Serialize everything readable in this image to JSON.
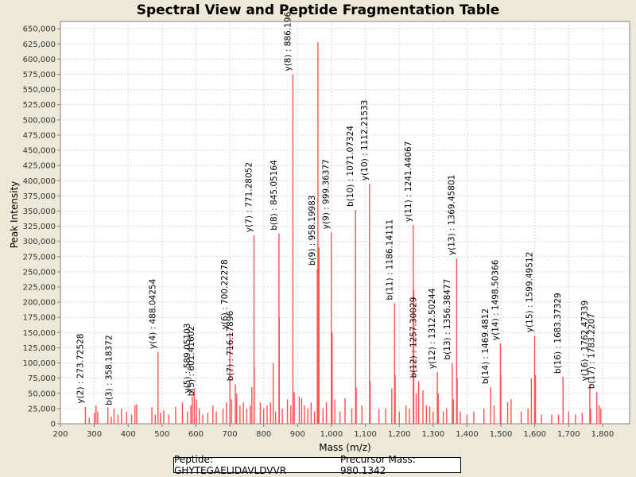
{
  "chart_data": {
    "type": "bar",
    "title": "Spectral View and Peptide Fragmentation Table",
    "xlabel": "Mass (m/z)",
    "ylabel": "Peak Intensity",
    "xlim": [
      200,
      1880
    ],
    "ylim": [
      0,
      662000
    ],
    "x_ticks": [
      "200",
      "300",
      "400",
      "500",
      "600",
      "700",
      "800",
      "900",
      "1,000",
      "1,100",
      "1,200",
      "1,300",
      "1,400",
      "1,500",
      "1,600",
      "1,700",
      "1,800"
    ],
    "y_ticks": [
      "0",
      "25,000",
      "50,000",
      "75,000",
      "100,000",
      "125,000",
      "150,000",
      "175,000",
      "200,000",
      "225,000",
      "250,000",
      "275,000",
      "300,000",
      "325,000",
      "350,000",
      "375,000",
      "400,000",
      "425,000",
      "450,000",
      "475,000",
      "500,000",
      "525,000",
      "550,000",
      "575,000",
      "600,000",
      "625,000",
      "650,000"
    ],
    "grid": true,
    "bar_color": "#FF5050",
    "annotated_peaks": [
      {
        "x": 273.7,
        "y": 28000,
        "label": "y(2) : 273.72528"
      },
      {
        "x": 358.2,
        "y": 25000,
        "label": "b(3) : 358.18372"
      },
      {
        "x": 488.0,
        "y": 118000,
        "label": "y(4) : 488.04254"
      },
      {
        "x": 589.1,
        "y": 45000,
        "label": "y(5) : 589.05103"
      },
      {
        "x": 601.4,
        "y": 40000,
        "label": "b(5) : 601.41602"
      },
      {
        "x": 700.2,
        "y": 150000,
        "label": "y(6) : 700.22278"
      },
      {
        "x": 716.2,
        "y": 65000,
        "label": "b(7) : 716.17896"
      },
      {
        "x": 771.3,
        "y": 310000,
        "label": "y(7) : 771.28052"
      },
      {
        "x": 845.1,
        "y": 313000,
        "label": "b(8) : 845.05164"
      },
      {
        "x": 886.2,
        "y": 575000,
        "label": "y(8) : 886.196"
      },
      {
        "x": 958.2,
        "y": 255000,
        "label": "b(9) : 958.19983"
      },
      {
        "x": 999.4,
        "y": 315000,
        "label": "y(9) : 999.36377"
      },
      {
        "x": 1071.1,
        "y": 352000,
        "label": "b(10) : 1071.07324"
      },
      {
        "x": 1112.2,
        "y": 395000,
        "label": "y(10) : 1112.21533"
      },
      {
        "x": 1186.1,
        "y": 198000,
        "label": "b(11) : 1186.14111"
      },
      {
        "x": 1241.4,
        "y": 327000,
        "label": "y(11) : 1241.44067"
      },
      {
        "x": 1257.3,
        "y": 70000,
        "label": "b(12) : 1257.30029"
      },
      {
        "x": 1312.5,
        "y": 85000,
        "label": "y(12) : 1312.50244"
      },
      {
        "x": 1356.4,
        "y": 100000,
        "label": "b(13) : 1356.38477"
      },
      {
        "x": 1369.5,
        "y": 272000,
        "label": "y(13) : 1369.45801"
      },
      {
        "x": 1469.5,
        "y": 60000,
        "label": "b(14) : 1469.4812"
      },
      {
        "x": 1498.5,
        "y": 132000,
        "label": "y(14) : 1498.50366"
      },
      {
        "x": 1599.5,
        "y": 145000,
        "label": "y(15) : 1599.49512"
      },
      {
        "x": 1683.4,
        "y": 77000,
        "label": "b(16) : 1683.37329"
      },
      {
        "x": 1762.5,
        "y": 65000,
        "label": "y(16) : 1762.47339"
      },
      {
        "x": 1783.2,
        "y": 52000,
        "label": "b(17) : 1783.2207"
      }
    ],
    "unlabeled_peaks": [
      {
        "x": 960,
        "y": 628000
      },
      {
        "x": 963,
        "y": 290000
      },
      {
        "x": 1002,
        "y": 150000
      },
      {
        "x": 846,
        "y": 175000
      },
      {
        "x": 772,
        "y": 95000
      },
      {
        "x": 828,
        "y": 100000
      },
      {
        "x": 890,
        "y": 52000
      },
      {
        "x": 1243,
        "y": 220000
      },
      {
        "x": 1188,
        "y": 80000
      },
      {
        "x": 1371,
        "y": 75000
      },
      {
        "x": 1114,
        "y": 70000
      },
      {
        "x": 1073,
        "y": 60000
      },
      {
        "x": 1500,
        "y": 80000
      },
      {
        "x": 1602,
        "y": 80000
      },
      {
        "x": 1250,
        "y": 50000
      },
      {
        "x": 1315,
        "y": 50000
      },
      {
        "x": 1178,
        "y": 58000
      },
      {
        "x": 1590,
        "y": 75000
      },
      {
        "x": 1040,
        "y": 42000
      },
      {
        "x": 1010,
        "y": 40000
      },
      {
        "x": 905,
        "y": 45000
      },
      {
        "x": 912,
        "y": 42000
      },
      {
        "x": 870,
        "y": 40000
      },
      {
        "x": 940,
        "y": 35000
      },
      {
        "x": 985,
        "y": 35000
      },
      {
        "x": 1060,
        "y": 25000
      },
      {
        "x": 1090,
        "y": 30000
      },
      {
        "x": 1140,
        "y": 25000
      },
      {
        "x": 1160,
        "y": 25000
      },
      {
        "x": 1200,
        "y": 20000
      },
      {
        "x": 1220,
        "y": 30000
      },
      {
        "x": 1230,
        "y": 25000
      },
      {
        "x": 1270,
        "y": 55000
      },
      {
        "x": 1280,
        "y": 30000
      },
      {
        "x": 1290,
        "y": 28000
      },
      {
        "x": 1300,
        "y": 20000
      },
      {
        "x": 1330,
        "y": 20000
      },
      {
        "x": 1340,
        "y": 25000
      },
      {
        "x": 1360,
        "y": 40000
      },
      {
        "x": 1380,
        "y": 20000
      },
      {
        "x": 1400,
        "y": 15000
      },
      {
        "x": 1420,
        "y": 20000
      },
      {
        "x": 1450,
        "y": 25000
      },
      {
        "x": 1480,
        "y": 30000
      },
      {
        "x": 1520,
        "y": 35000
      },
      {
        "x": 1530,
        "y": 40000
      },
      {
        "x": 1560,
        "y": 20000
      },
      {
        "x": 1580,
        "y": 25000
      },
      {
        "x": 1620,
        "y": 15000
      },
      {
        "x": 1650,
        "y": 15000
      },
      {
        "x": 1670,
        "y": 15000
      },
      {
        "x": 1700,
        "y": 20000
      },
      {
        "x": 1720,
        "y": 15000
      },
      {
        "x": 1740,
        "y": 18000
      },
      {
        "x": 1765,
        "y": 25000
      },
      {
        "x": 1790,
        "y": 30000
      },
      {
        "x": 1795,
        "y": 25000
      },
      {
        "x": 285,
        "y": 10000
      },
      {
        "x": 300,
        "y": 18000
      },
      {
        "x": 305,
        "y": 30000
      },
      {
        "x": 310,
        "y": 20000
      },
      {
        "x": 340,
        "y": 27000
      },
      {
        "x": 350,
        "y": 12000
      },
      {
        "x": 370,
        "y": 15000
      },
      {
        "x": 380,
        "y": 25000
      },
      {
        "x": 395,
        "y": 20000
      },
      {
        "x": 410,
        "y": 15000
      },
      {
        "x": 420,
        "y": 30000
      },
      {
        "x": 425,
        "y": 32000
      },
      {
        "x": 470,
        "y": 27000
      },
      {
        "x": 480,
        "y": 15000
      },
      {
        "x": 495,
        "y": 18000
      },
      {
        "x": 505,
        "y": 22000
      },
      {
        "x": 520,
        "y": 15000
      },
      {
        "x": 540,
        "y": 28000
      },
      {
        "x": 560,
        "y": 35000
      },
      {
        "x": 575,
        "y": 20000
      },
      {
        "x": 585,
        "y": 30000
      },
      {
        "x": 595,
        "y": 55000
      },
      {
        "x": 610,
        "y": 25000
      },
      {
        "x": 620,
        "y": 15000
      },
      {
        "x": 635,
        "y": 18000
      },
      {
        "x": 650,
        "y": 30000
      },
      {
        "x": 660,
        "y": 20000
      },
      {
        "x": 680,
        "y": 25000
      },
      {
        "x": 690,
        "y": 35000
      },
      {
        "x": 705,
        "y": 40000
      },
      {
        "x": 720,
        "y": 50000
      },
      {
        "x": 730,
        "y": 30000
      },
      {
        "x": 740,
        "y": 35000
      },
      {
        "x": 750,
        "y": 25000
      },
      {
        "x": 760,
        "y": 30000
      },
      {
        "x": 765,
        "y": 60000
      },
      {
        "x": 790,
        "y": 35000
      },
      {
        "x": 800,
        "y": 25000
      },
      {
        "x": 810,
        "y": 30000
      },
      {
        "x": 820,
        "y": 35000
      },
      {
        "x": 835,
        "y": 20000
      },
      {
        "x": 855,
        "y": 25000
      },
      {
        "x": 880,
        "y": 30000
      },
      {
        "x": 920,
        "y": 30000
      },
      {
        "x": 930,
        "y": 25000
      },
      {
        "x": 950,
        "y": 20000
      },
      {
        "x": 975,
        "y": 25000
      },
      {
        "x": 1025,
        "y": 20000
      }
    ]
  },
  "footer": {
    "peptide": "Peptide: GHYTEGAELIDAVLDVVR",
    "precursor": "Precursor Mass: 980.1342"
  }
}
